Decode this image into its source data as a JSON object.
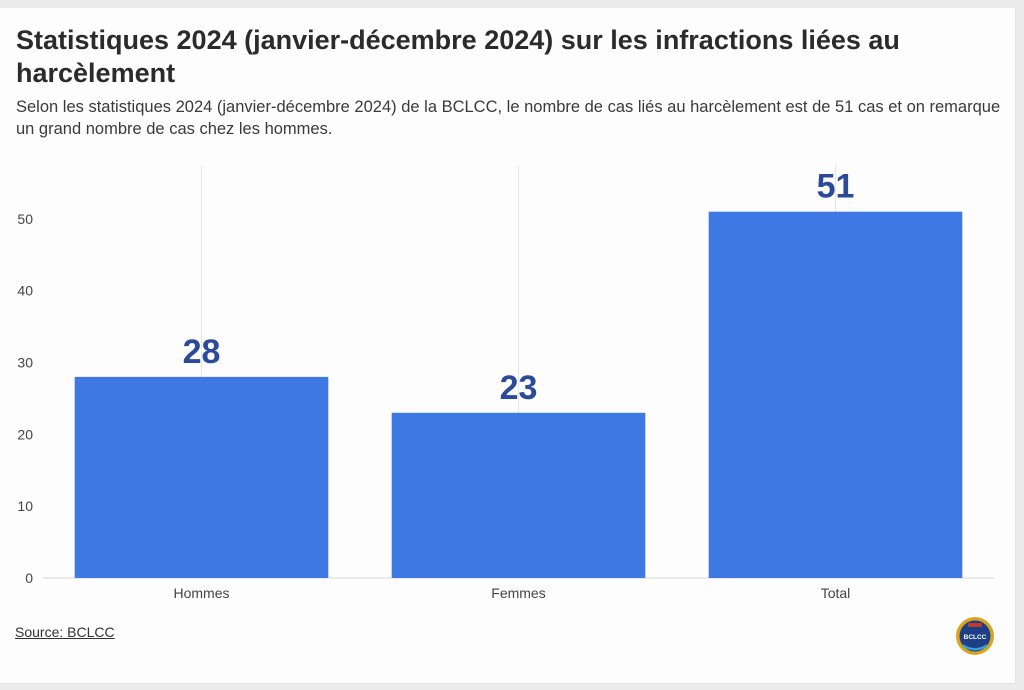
{
  "title": "Statistiques 2024 (janvier-décembre 2024) sur les infractions liées au harcèlement",
  "subtitle": "Selon les statistiques 2024 (janvier-décembre 2024) de la BCLCC, le nombre de cas liés au harcèlement est de 51 cas et on remarque un grand nombre de cas chez les hommes.",
  "source": "Source: BCLCC",
  "logo_text": "BCLCC",
  "colors": {
    "bar": "#3d78e3",
    "label": "#2b4a9a",
    "grid": "#e6e6e6",
    "axis_text": "#444444"
  },
  "chart_data": {
    "type": "bar",
    "categories": [
      "Hommes",
      "Femmes",
      "Total"
    ],
    "values": [
      28,
      23,
      51
    ],
    "data_labels": [
      "28",
      "23",
      "51"
    ],
    "ylim": [
      0,
      57.5
    ],
    "yticks": [
      0,
      10,
      20,
      30,
      40,
      50
    ],
    "xlabel": "",
    "ylabel": "",
    "grid": true,
    "legend": "none"
  }
}
